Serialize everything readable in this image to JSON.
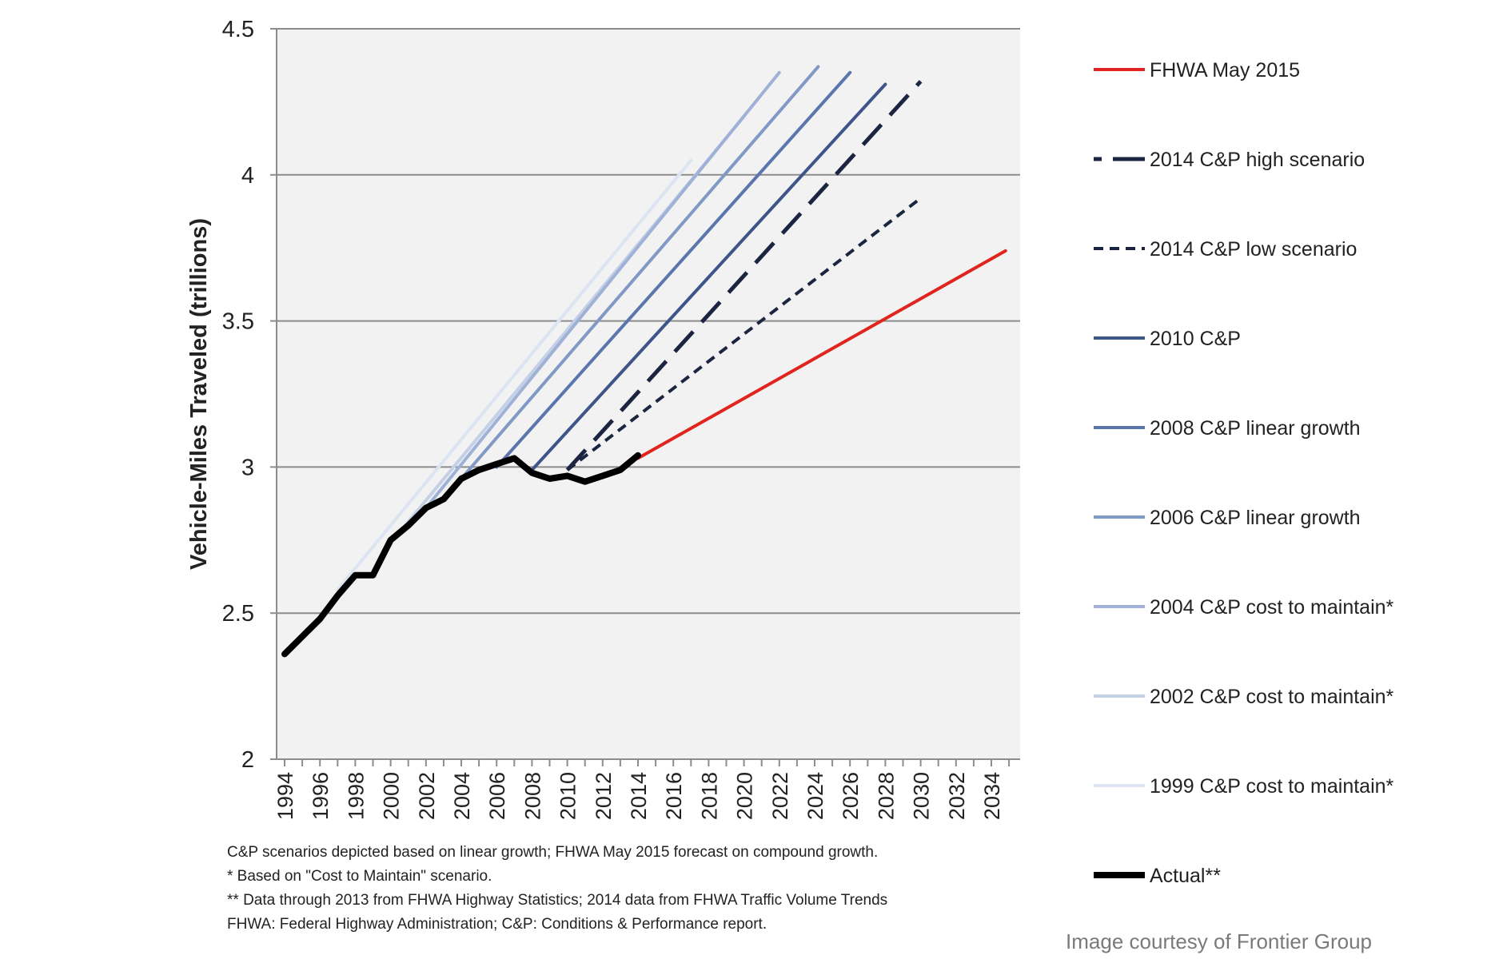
{
  "chart_data": {
    "type": "line",
    "title": "",
    "xlabel": "",
    "ylabel": "Vehicle-Miles Traveled (trillions)",
    "xlim": [
      1994,
      2035
    ],
    "ylim": [
      2,
      4.5
    ],
    "xticks": [
      1994,
      1996,
      1998,
      2000,
      2002,
      2004,
      2006,
      2008,
      2010,
      2012,
      2014,
      2016,
      2018,
      2020,
      2022,
      2024,
      2026,
      2028,
      2030,
      2032,
      2034
    ],
    "xtick_labels": [
      "1994",
      "1996",
      "1998",
      "2000",
      "2002",
      "2004",
      "2006",
      "2008",
      "2010",
      "2012",
      "2014",
      "2016",
      "2018",
      "2020",
      "2022",
      "2024",
      "2026",
      "2028",
      "2030",
      "2032",
      "2034"
    ],
    "yticks": [
      2,
      2.5,
      3,
      3.5,
      4,
      4.5
    ],
    "ytick_labels": [
      "2",
      "2.5",
      "3",
      "3.5",
      "4",
      "4.5"
    ],
    "grid": "horizontal",
    "background": "#f2f2f2",
    "legend_position": "right",
    "series": [
      {
        "name": "FHWA May 2015",
        "color": "#e0251f",
        "style": "solid",
        "width": 4,
        "x": [
          2014,
          2034.8
        ],
        "y": [
          3.03,
          3.74
        ]
      },
      {
        "name": "2014 C&P high scenario",
        "color": "#1b2440",
        "style": "long-dash",
        "width": 5,
        "x": [
          2010,
          2030
        ],
        "y": [
          2.99,
          4.32
        ]
      },
      {
        "name": "2014 C&P low scenario",
        "color": "#1b2440",
        "style": "short-dash",
        "width": 4,
        "x": [
          2010,
          2030
        ],
        "y": [
          2.99,
          3.92
        ]
      },
      {
        "name": "2010 C&P",
        "color": "#3d5588",
        "style": "solid",
        "width": 4,
        "x": [
          2008,
          2028
        ],
        "y": [
          2.99,
          4.31
        ]
      },
      {
        "name": "2008 C&P linear growth",
        "color": "#5b76ac",
        "style": "solid",
        "width": 4,
        "x": [
          2006,
          2026
        ],
        "y": [
          3.0,
          4.35
        ]
      },
      {
        "name": "2006 C&P linear growth",
        "color": "#8199c6",
        "style": "solid",
        "width": 4,
        "x": [
          2004,
          2024.2
        ],
        "y": [
          2.96,
          4.37
        ]
      },
      {
        "name": "2004 C&P cost to maintain*",
        "color": "#9fb1d6",
        "style": "solid",
        "width": 4,
        "x": [
          2002,
          2022
        ],
        "y": [
          2.86,
          4.35
        ]
      },
      {
        "name": "2002 C&P cost to maintain*",
        "color": "#c4d0e6",
        "style": "solid",
        "width": 4,
        "x": [
          2000,
          2020
        ],
        "y": [
          2.74,
          4.2
        ]
      },
      {
        "name": "1999 C&P cost to maintain*",
        "color": "#dde4f1",
        "style": "solid",
        "width": 4,
        "x": [
          1997,
          2017
        ],
        "y": [
          2.58,
          4.05
        ]
      },
      {
        "name": "Actual**",
        "color": "#000000",
        "style": "solid",
        "width": 8,
        "x": [
          1994,
          1995,
          1996,
          1997,
          1998,
          1999,
          2000,
          2001,
          2002,
          2003,
          2004,
          2005,
          2006,
          2007,
          2008,
          2009,
          2010,
          2011,
          2012,
          2013,
          2014
        ],
        "y": [
          2.36,
          2.42,
          2.48,
          2.56,
          2.63,
          2.63,
          2.75,
          2.8,
          2.86,
          2.89,
          2.96,
          2.99,
          3.01,
          3.03,
          2.98,
          2.96,
          2.97,
          2.95,
          2.97,
          2.99,
          3.04
        ]
      }
    ]
  },
  "notes": [
    "C&P scenarios depicted based on linear growth; FHWA May 2015 forecast on compound growth.",
    "* Based on \"Cost to Maintain\" scenario.",
    "** Data through 2013 from FHWA Highway Statistics; 2014 data from FHWA Traffic Volume Trends",
    "FHWA: Federal Highway Administration; C&P: Conditions & Performance report."
  ],
  "credit": "Image courtesy of Frontier Group"
}
